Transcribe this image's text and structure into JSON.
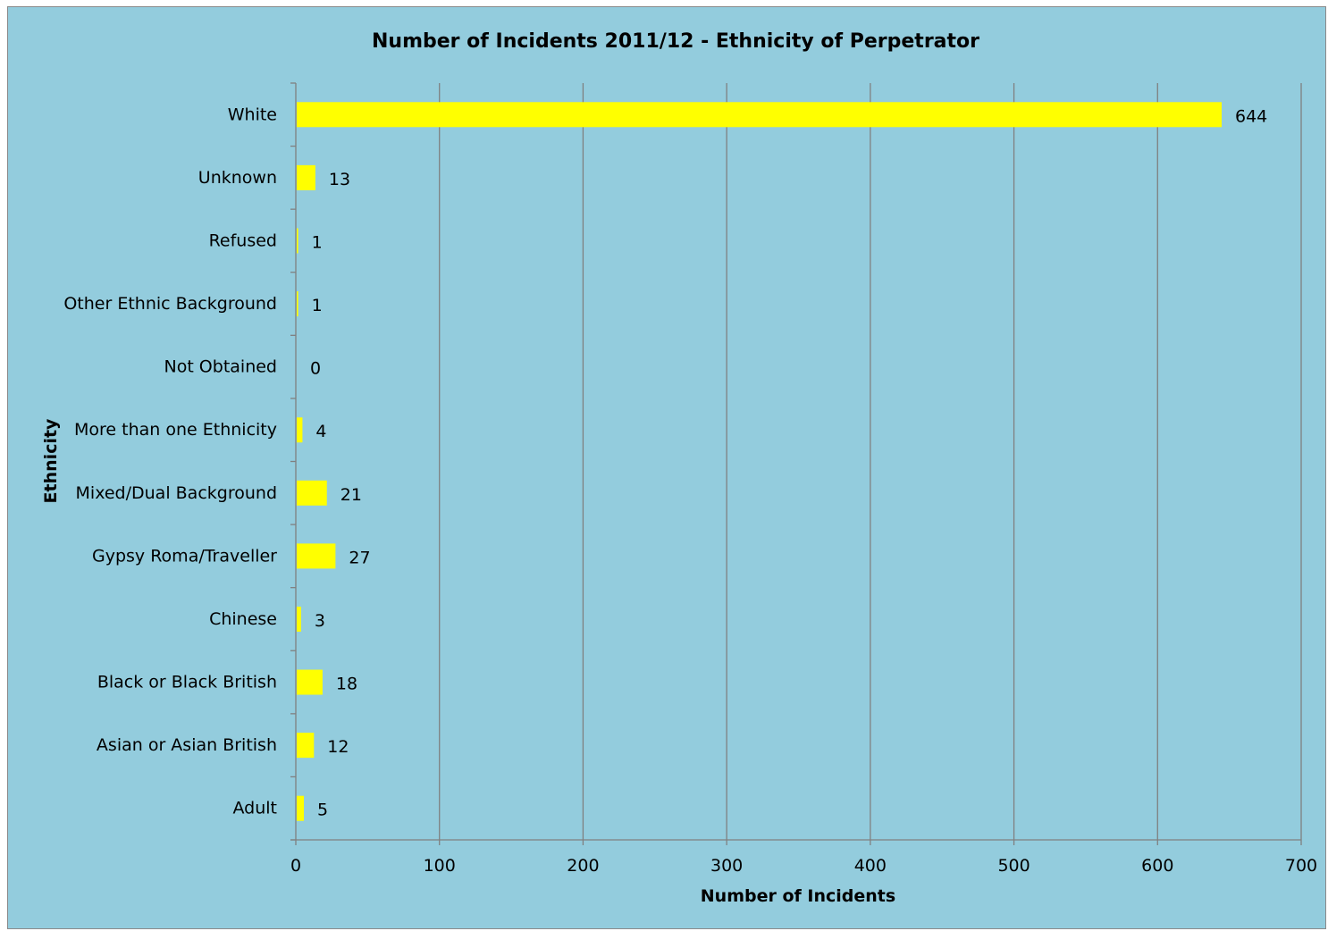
{
  "colors": {
    "background": "#93CCDD",
    "bar": "#FFFF00",
    "gridline": "#808080",
    "axis": "#808080",
    "text": "#000000"
  },
  "chart_data": {
    "type": "bar",
    "orientation": "horizontal",
    "title": "Number of Incidents 2011/12 - Ethnicity of Perpetrator",
    "xlabel": "Number of Incidents",
    "ylabel": "Ethnicity",
    "categories": [
      "White",
      "Unknown",
      "Refused",
      "Other Ethnic Background",
      "Not Obtained",
      "More than one Ethnicity",
      "Mixed/Dual Background",
      "Gypsy Roma/Traveller",
      "Chinese",
      "Black or Black British",
      "Asian or Asian British",
      "Adult"
    ],
    "values": [
      644,
      13,
      1,
      1,
      0,
      4,
      21,
      27,
      3,
      18,
      12,
      5
    ],
    "data_labels": [
      "644",
      "13",
      "1",
      "1",
      "0",
      "4",
      "21",
      "27",
      "3",
      "18",
      "12",
      "5"
    ],
    "xlim": [
      0,
      700
    ],
    "xticks": [
      "0",
      "100",
      "200",
      "300",
      "400",
      "500",
      "600",
      "700"
    ],
    "grid": true,
    "legend": "none"
  }
}
